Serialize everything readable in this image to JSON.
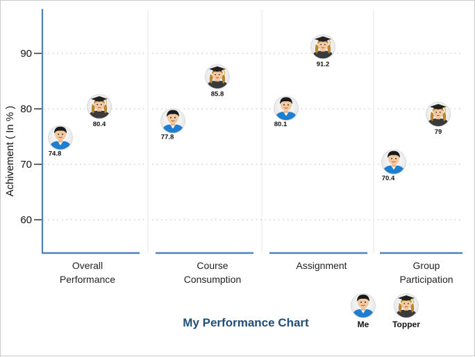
{
  "chart_data": {
    "type": "scatter",
    "title": "My Performance Chart",
    "ylabel": "Achivement ( In % )",
    "xlabel": "",
    "ylim": [
      54,
      98
    ],
    "yticks": [
      60,
      70,
      80,
      90
    ],
    "grid": true,
    "legend_position": "bottom-right",
    "categories": [
      "Overall\nPerformance",
      "Course\nConsumption",
      "Assignment",
      "Group\nParticipation"
    ],
    "series": [
      {
        "name": "Me",
        "icon": "student-boy-icon",
        "values": [
          74.8,
          77.8,
          80.1,
          70.4
        ]
      },
      {
        "name": "Topper",
        "icon": "graduate-girl-icon",
        "values": [
          80.4,
          85.8,
          91.2,
          79
        ]
      }
    ]
  },
  "colors": {
    "axis_blue": "#4f81bd",
    "title_blue": "#1f4e79",
    "grid": "#c8c8c8",
    "me_shirt": "#1e7fd0",
    "topper_gown": "#3a3a3a"
  }
}
